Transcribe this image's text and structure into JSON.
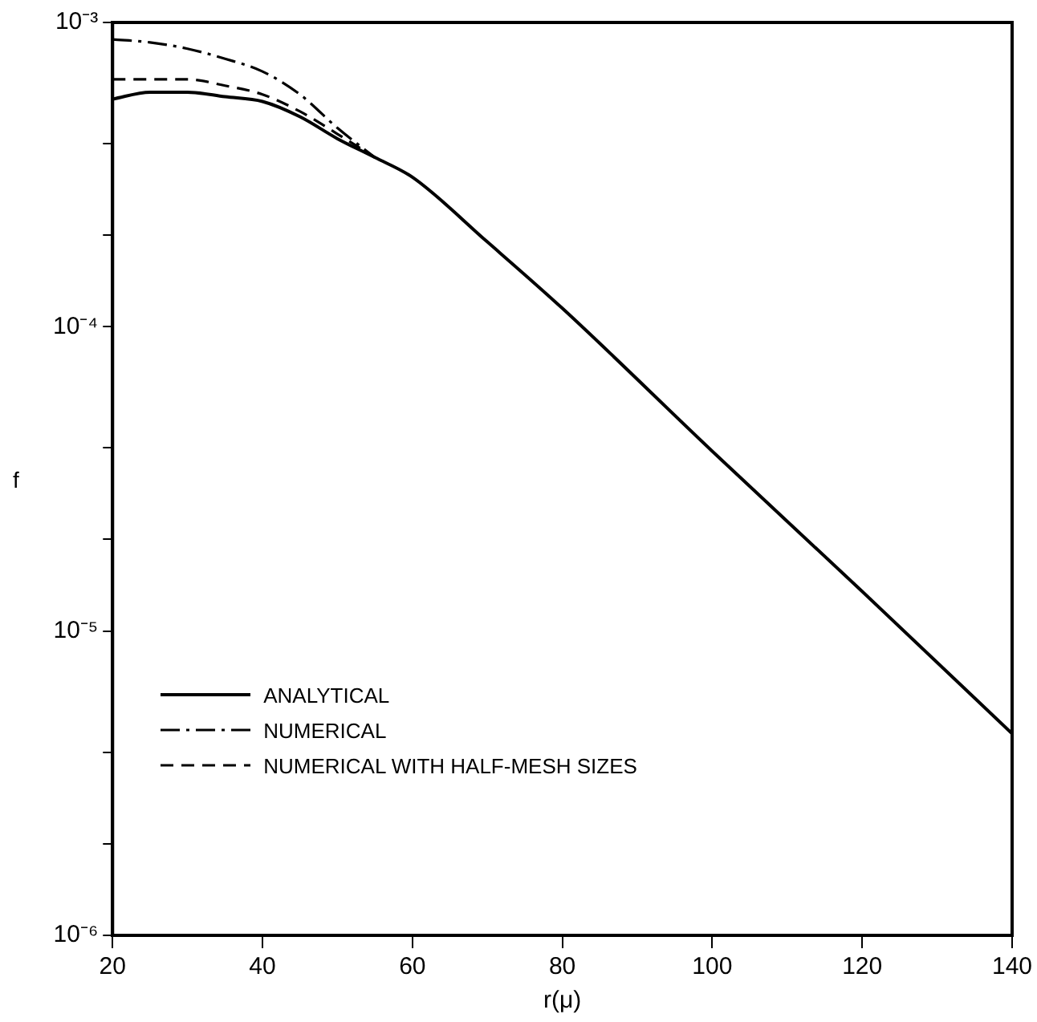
{
  "chart_data": {
    "type": "line",
    "xlabel": "r(μ)",
    "ylabel": "f",
    "log": "y",
    "grid": false,
    "legend": "bottom left",
    "marker": "none",
    "xlim": [
      20,
      140
    ],
    "xticks": [
      20,
      40,
      60,
      80,
      100,
      120,
      140
    ],
    "ylim": [
      1e-06,
      0.001
    ],
    "yticks": [
      {
        "value": 1e-06,
        "label": "10⁻⁶"
      },
      {
        "value": 2e-06,
        "label": null
      },
      {
        "value": 4e-06,
        "label": null
      },
      {
        "value": 1e-05,
        "label": "10⁻⁵"
      },
      {
        "value": 2e-05,
        "label": null
      },
      {
        "value": 4e-05,
        "label": null
      },
      {
        "value": 0.0001,
        "label": "10⁻⁴"
      },
      {
        "value": 0.0002,
        "label": null
      },
      {
        "value": 0.0004,
        "label": null
      },
      {
        "value": 0.001,
        "label": "10⁻³"
      }
    ],
    "series": [
      {
        "name": "ANALYTICAL",
        "color": "#000000",
        "line_style": "solid",
        "x": [
          20,
          25,
          30,
          35,
          40,
          45,
          50,
          55,
          60,
          70,
          80,
          100,
          120,
          140
        ],
        "values": [
          0.00056,
          0.00059,
          0.00059,
          0.00057,
          0.00055,
          0.00049,
          0.000415,
          0.00036,
          0.00031,
          0.00019,
          0.000115,
          3.9e-05,
          1.35e-05,
          4.6e-06
        ]
      },
      {
        "name": "NUMERICAL",
        "color": "#000000",
        "line_style": "dashdot",
        "x": [
          20,
          25,
          30,
          35,
          40,
          45,
          50,
          55
        ],
        "values": [
          0.00088,
          0.00086,
          0.00082,
          0.00076,
          0.00069,
          0.00058,
          0.00045,
          0.00036
        ]
      },
      {
        "name": "NUMERICAL WITH HALF-MESH SIZES",
        "color": "#000000",
        "line_style": "dashed",
        "x": [
          20,
          25,
          30,
          35,
          40,
          45,
          50,
          55
        ],
        "values": [
          0.00065,
          0.00065,
          0.00065,
          0.00062,
          0.00058,
          0.00051,
          0.00043,
          0.00036
        ]
      }
    ]
  }
}
